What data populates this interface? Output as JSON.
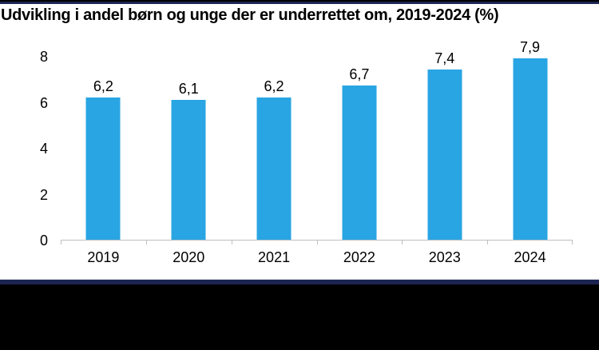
{
  "title": "Udvikling i andel børn og unge der er underrettet om, 2019-2024 (%)",
  "chart_data": {
    "type": "bar",
    "title": "Udvikling i andel børn og unge der er underrettet om, 2019-2024 (%)",
    "categories": [
      "2019",
      "2020",
      "2021",
      "2022",
      "2023",
      "2024"
    ],
    "values": [
      6.2,
      6.1,
      6.2,
      6.7,
      7.4,
      7.9
    ],
    "value_labels": [
      "6,2",
      "6,1",
      "6,2",
      "6,7",
      "7,4",
      "7,9"
    ],
    "xlabel": "",
    "ylabel": "",
    "y_ticks": [
      0,
      2,
      4,
      6,
      8
    ],
    "ylim": [
      0,
      8
    ],
    "grid": false,
    "legend": false,
    "bar_color": "#29A5E3",
    "axis_color": "#BFBFBF"
  },
  "colors": {
    "accent_navy": "#1B2451",
    "footer_black": "#000000",
    "bar_blue": "#29A5E3",
    "axis_gray": "#BFBFBF",
    "text_black": "#000000"
  }
}
